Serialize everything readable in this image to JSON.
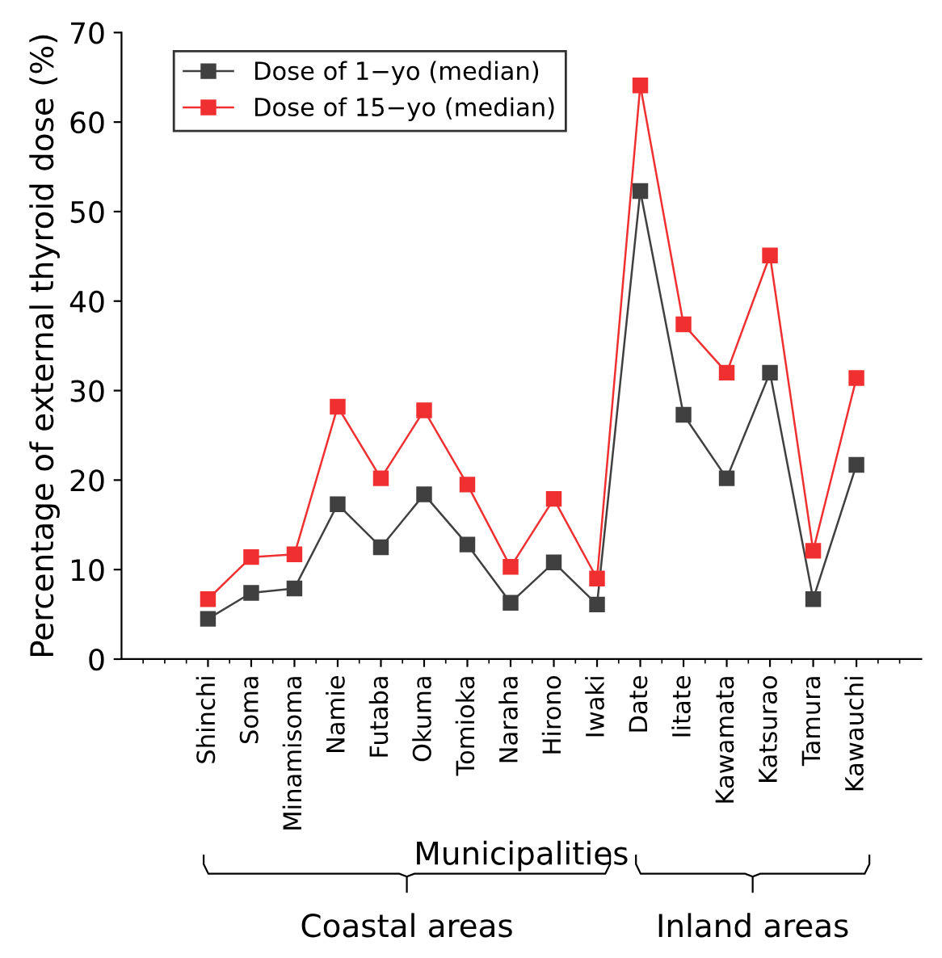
{
  "chart_data": {
    "type": "line",
    "xlabel": "Municipalities",
    "ylabel": "Percentage of external thyroid dose (%)",
    "categories": [
      "Shinchi",
      "Soma",
      "Minamisoma",
      "Namie",
      "Futaba",
      "Okuma",
      "Tomioka",
      "Naraha",
      "Hirono",
      "Iwaki",
      "Date",
      "Iitate",
      "Kawamata",
      "Katsurao",
      "Tamura",
      "Kawauchi"
    ],
    "series": [
      {
        "name": "Dose of 1−yo (median)",
        "color": "#404040",
        "values": [
          4.5,
          7.4,
          7.9,
          17.3,
          12.5,
          18.4,
          12.8,
          6.3,
          10.8,
          6.1,
          52.3,
          27.3,
          20.2,
          32.0,
          6.7,
          21.7
        ]
      },
      {
        "name": "Dose of 15−yo (median)",
        "color": "#f03030",
        "values": [
          6.7,
          11.4,
          11.7,
          28.2,
          20.2,
          27.8,
          19.5,
          10.3,
          17.9,
          9.0,
          64.1,
          37.4,
          32.0,
          45.1,
          12.1,
          31.4
        ]
      }
    ],
    "ylim": [
      0,
      70
    ],
    "yticks": [
      0,
      10,
      20,
      30,
      40,
      50,
      60,
      70
    ],
    "marker": "square",
    "line_style": "solid",
    "legend": "top left",
    "grid": false,
    "annotations": [
      "Coastal areas",
      "Inland areas"
    ]
  }
}
